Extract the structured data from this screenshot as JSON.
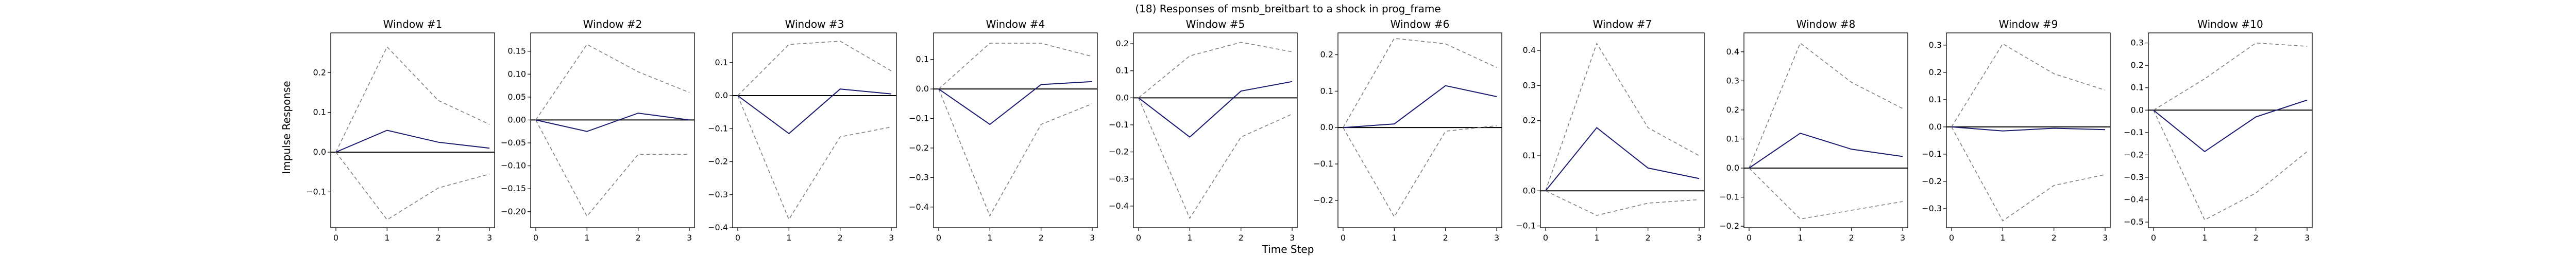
{
  "figure": {
    "title": "(18) Responses of msnb_breitbart to a shock in prog_frame",
    "xlabel": "Time Step",
    "ylabel": "Impulse Response"
  },
  "colors": {
    "response_line": "#191970",
    "band_line": "#808080",
    "zero_line": "#000000",
    "axes": "#000000"
  },
  "chart_data": [
    {
      "type": "line",
      "title": "Window #1",
      "x": [
        0,
        1,
        2,
        3
      ],
      "ylim": [
        -0.19,
        0.3
      ],
      "yticks": [
        -0.1,
        0.0,
        0.1,
        0.2
      ],
      "ytick_labels": [
        "−0.1",
        "0.0",
        "0.1",
        "0.2"
      ],
      "response": [
        0,
        0.055,
        0.025,
        0.01
      ],
      "upper": [
        0,
        0.265,
        0.13,
        0.07
      ],
      "lower": [
        0,
        -0.17,
        -0.09,
        -0.055
      ]
    },
    {
      "type": "line",
      "title": "Window #2",
      "x": [
        0,
        1,
        2,
        3
      ],
      "ylim": [
        -0.235,
        0.19
      ],
      "yticks": [
        -0.2,
        -0.15,
        -0.1,
        -0.05,
        0.0,
        0.05,
        0.1,
        0.15
      ],
      "ytick_labels": [
        "−0.20",
        "−0.15",
        "−0.10",
        "−0.05",
        "0.00",
        "0.05",
        "0.10",
        "0.15"
      ],
      "response": [
        0,
        -0.025,
        0.015,
        0
      ],
      "upper": [
        0,
        0.165,
        0.105,
        0.06
      ],
      "lower": [
        0,
        -0.21,
        -0.075,
        -0.075
      ]
    },
    {
      "type": "line",
      "title": "Window #3",
      "x": [
        0,
        1,
        2,
        3
      ],
      "ylim": [
        -0.4,
        0.19
      ],
      "yticks": [
        -0.4,
        -0.3,
        -0.2,
        -0.1,
        0.0,
        0.1
      ],
      "ytick_labels": [
        "−0.4",
        "−0.3",
        "−0.2",
        "−0.1",
        "0.0",
        "0.1"
      ],
      "response": [
        0,
        -0.115,
        0.02,
        0.005
      ],
      "upper": [
        0,
        0.155,
        0.165,
        0.075
      ],
      "lower": [
        0,
        -0.375,
        -0.125,
        -0.095
      ]
    },
    {
      "type": "line",
      "title": "Window #4",
      "x": [
        0,
        1,
        2,
        3
      ],
      "ylim": [
        -0.47,
        0.19
      ],
      "yticks": [
        -0.4,
        -0.3,
        -0.2,
        -0.1,
        0.0,
        0.1
      ],
      "ytick_labels": [
        "−0.4",
        "−0.3",
        "−0.2",
        "−0.1",
        "0.0",
        "0.1"
      ],
      "response": [
        0,
        -0.12,
        0.015,
        0.025
      ],
      "upper": [
        0,
        0.155,
        0.155,
        0.11
      ],
      "lower": [
        0,
        -0.43,
        -0.12,
        -0.05
      ]
    },
    {
      "type": "line",
      "title": "Window #5",
      "x": [
        0,
        1,
        2,
        3
      ],
      "ylim": [
        -0.48,
        0.24
      ],
      "yticks": [
        -0.4,
        -0.3,
        -0.2,
        -0.1,
        0.0,
        0.1,
        0.2
      ],
      "ytick_labels": [
        "−0.4",
        "−0.3",
        "−0.2",
        "−0.1",
        "0.0",
        "0.1",
        "0.2"
      ],
      "response": [
        0,
        -0.145,
        0.025,
        0.06
      ],
      "upper": [
        0,
        0.155,
        0.205,
        0.17
      ],
      "lower": [
        0,
        -0.445,
        -0.145,
        -0.06
      ]
    },
    {
      "type": "line",
      "title": "Window #6",
      "x": [
        0,
        1,
        2,
        3
      ],
      "ylim": [
        -0.275,
        0.26
      ],
      "yticks": [
        -0.2,
        -0.1,
        0.0,
        0.1,
        0.2
      ],
      "ytick_labels": [
        "−0.2",
        "−0.1",
        "0.0",
        "0.1",
        "0.2"
      ],
      "response": [
        0,
        0.01,
        0.115,
        0.085
      ],
      "upper": [
        0,
        0.245,
        0.23,
        0.165
      ],
      "lower": [
        0,
        -0.245,
        -0.01,
        0.005
      ]
    },
    {
      "type": "line",
      "title": "Window #7",
      "x": [
        0,
        1,
        2,
        3
      ],
      "ylim": [
        -0.105,
        0.45
      ],
      "yticks": [
        -0.1,
        0.0,
        0.1,
        0.2,
        0.3,
        0.4
      ],
      "ytick_labels": [
        "−0.1",
        "0.0",
        "0.1",
        "0.2",
        "0.3",
        "0.4"
      ],
      "response": [
        0,
        0.18,
        0.065,
        0.035
      ],
      "upper": [
        0,
        0.42,
        0.18,
        0.1
      ],
      "lower": [
        0,
        -0.07,
        -0.035,
        -0.025
      ]
    },
    {
      "type": "line",
      "title": "Window #8",
      "x": [
        0,
        1,
        2,
        3
      ],
      "ylim": [
        -0.205,
        0.465
      ],
      "yticks": [
        -0.2,
        -0.1,
        0.0,
        0.1,
        0.2,
        0.3,
        0.4
      ],
      "ytick_labels": [
        "−0.2",
        "−0.1",
        "0.0",
        "0.1",
        "0.2",
        "0.3",
        "0.4"
      ],
      "response": [
        0,
        0.12,
        0.065,
        0.04
      ],
      "upper": [
        0,
        0.43,
        0.295,
        0.205
      ],
      "lower": [
        0,
        -0.175,
        -0.145,
        -0.115
      ]
    },
    {
      "type": "line",
      "title": "Window #9",
      "x": [
        0,
        1,
        2,
        3
      ],
      "ylim": [
        -0.37,
        0.345
      ],
      "yticks": [
        -0.3,
        -0.2,
        -0.1,
        0.0,
        0.1,
        0.2,
        0.3
      ],
      "ytick_labels": [
        "−0.3",
        "−0.2",
        "−0.1",
        "0.0",
        "0.1",
        "0.2",
        "0.3"
      ],
      "response": [
        0,
        -0.015,
        -0.005,
        -0.01
      ],
      "upper": [
        0,
        0.305,
        0.195,
        0.135
      ],
      "lower": [
        0,
        -0.345,
        -0.215,
        -0.175
      ]
    },
    {
      "type": "line",
      "title": "Window #10",
      "x": [
        0,
        1,
        2,
        3
      ],
      "ylim": [
        -0.525,
        0.345
      ],
      "yticks": [
        -0.5,
        -0.4,
        -0.3,
        -0.2,
        -0.1,
        0.0,
        0.1,
        0.2,
        0.3
      ],
      "ytick_labels": [
        "−0.5",
        "−0.4",
        "−0.3",
        "−0.2",
        "−0.1",
        "0.0",
        "0.1",
        "0.2",
        "0.3"
      ],
      "response": [
        0,
        -0.185,
        -0.03,
        0.045
      ],
      "upper": [
        0,
        0.14,
        0.3,
        0.285
      ],
      "lower": [
        0,
        -0.49,
        -0.37,
        -0.185
      ]
    }
  ]
}
